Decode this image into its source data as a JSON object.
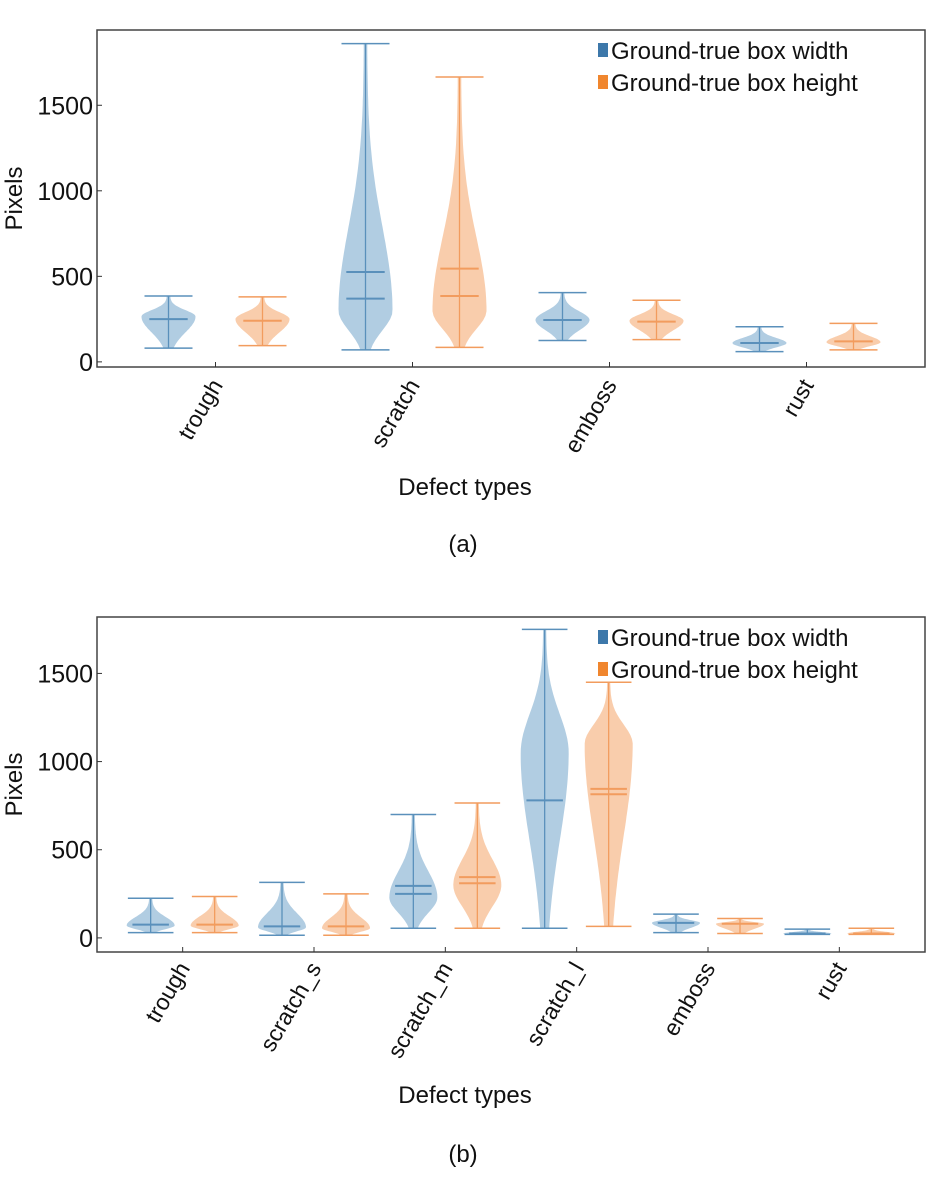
{
  "colors": {
    "width": "#3d78aa",
    "height": "#f0862e",
    "width_fill": "#a8c8df",
    "height_fill": "#f8c8a3",
    "width_line": "#5a90bb",
    "height_line": "#f29c5e"
  },
  "chart_data": [
    {
      "type": "violin",
      "caption": "(a)",
      "xlabel": "Defect types",
      "ylabel": "Pixels",
      "ylim": [
        -30,
        1940
      ],
      "yticks": [
        0,
        500,
        1000,
        1500
      ],
      "ytick_labels": [
        "0",
        "500",
        "1000",
        "1500"
      ],
      "legend": {
        "placement": "top-right",
        "entries": [
          "Ground-true box width",
          "Ground-true box height"
        ]
      },
      "categories": [
        "trough",
        "scratch",
        "emboss",
        "rust"
      ],
      "series": [
        {
          "name": "Ground-true box width",
          "violins": [
            {
              "min": 80,
              "max": 385,
              "mode": 265,
              "lines": [
                250
              ]
            },
            {
              "min": 70,
              "max": 1860,
              "mode": 300,
              "lines": [
                525,
                370
              ]
            },
            {
              "min": 125,
              "max": 405,
              "mode": 245,
              "lines": [
                245
              ]
            },
            {
              "min": 60,
              "max": 205,
              "mode": 110,
              "lines": [
                110
              ]
            }
          ]
        },
        {
          "name": "Ground-true box height",
          "violins": [
            {
              "min": 95,
              "max": 380,
              "mode": 250,
              "lines": [
                240
              ]
            },
            {
              "min": 85,
              "max": 1665,
              "mode": 300,
              "lines": [
                545,
                385
              ]
            },
            {
              "min": 130,
              "max": 360,
              "mode": 240,
              "lines": [
                235
              ]
            },
            {
              "min": 70,
              "max": 225,
              "mode": 115,
              "lines": [
                120
              ]
            }
          ]
        }
      ]
    },
    {
      "type": "violin",
      "caption": "(b)",
      "xlabel": "Defect types",
      "ylabel": "Pixels",
      "ylim": [
        -80,
        1820
      ],
      "yticks": [
        0,
        500,
        1000,
        1500
      ],
      "ytick_labels": [
        "0",
        "500",
        "1000",
        "1500"
      ],
      "legend": {
        "placement": "top-right",
        "entries": [
          "Ground-true box width",
          "Ground-true box height"
        ]
      },
      "categories": [
        "trough",
        "scratch_s",
        "scratch_m",
        "scratch_l",
        "emboss",
        "rust"
      ],
      "series": [
        {
          "name": "Ground-true box width",
          "violins": [
            {
              "min": 30,
              "max": 225,
              "mode": 70,
              "lines": [
                75
              ]
            },
            {
              "min": 15,
              "max": 315,
              "mode": 60,
              "lines": [
                65
              ]
            },
            {
              "min": 55,
              "max": 700,
              "mode": 230,
              "lines": [
                295,
                250
              ]
            },
            {
              "min": 55,
              "max": 1750,
              "mode": 1050,
              "lines": [
                780
              ]
            },
            {
              "min": 30,
              "max": 135,
              "mode": 85,
              "lines": [
                85
              ]
            },
            {
              "min": 20,
              "max": 50,
              "mode": 25,
              "lines": [
                25
              ]
            }
          ]
        },
        {
          "name": "Ground-true box height",
          "violins": [
            {
              "min": 30,
              "max": 235,
              "mode": 70,
              "lines": [
                75
              ]
            },
            {
              "min": 15,
              "max": 250,
              "mode": 55,
              "lines": [
                65
              ]
            },
            {
              "min": 55,
              "max": 765,
              "mode": 300,
              "lines": [
                345,
                310
              ]
            },
            {
              "min": 65,
              "max": 1450,
              "mode": 1100,
              "lines": [
                845,
                815
              ]
            },
            {
              "min": 25,
              "max": 110,
              "mode": 80,
              "lines": [
                80
              ]
            },
            {
              "min": 20,
              "max": 55,
              "mode": 25,
              "lines": [
                25
              ]
            }
          ]
        }
      ]
    }
  ]
}
